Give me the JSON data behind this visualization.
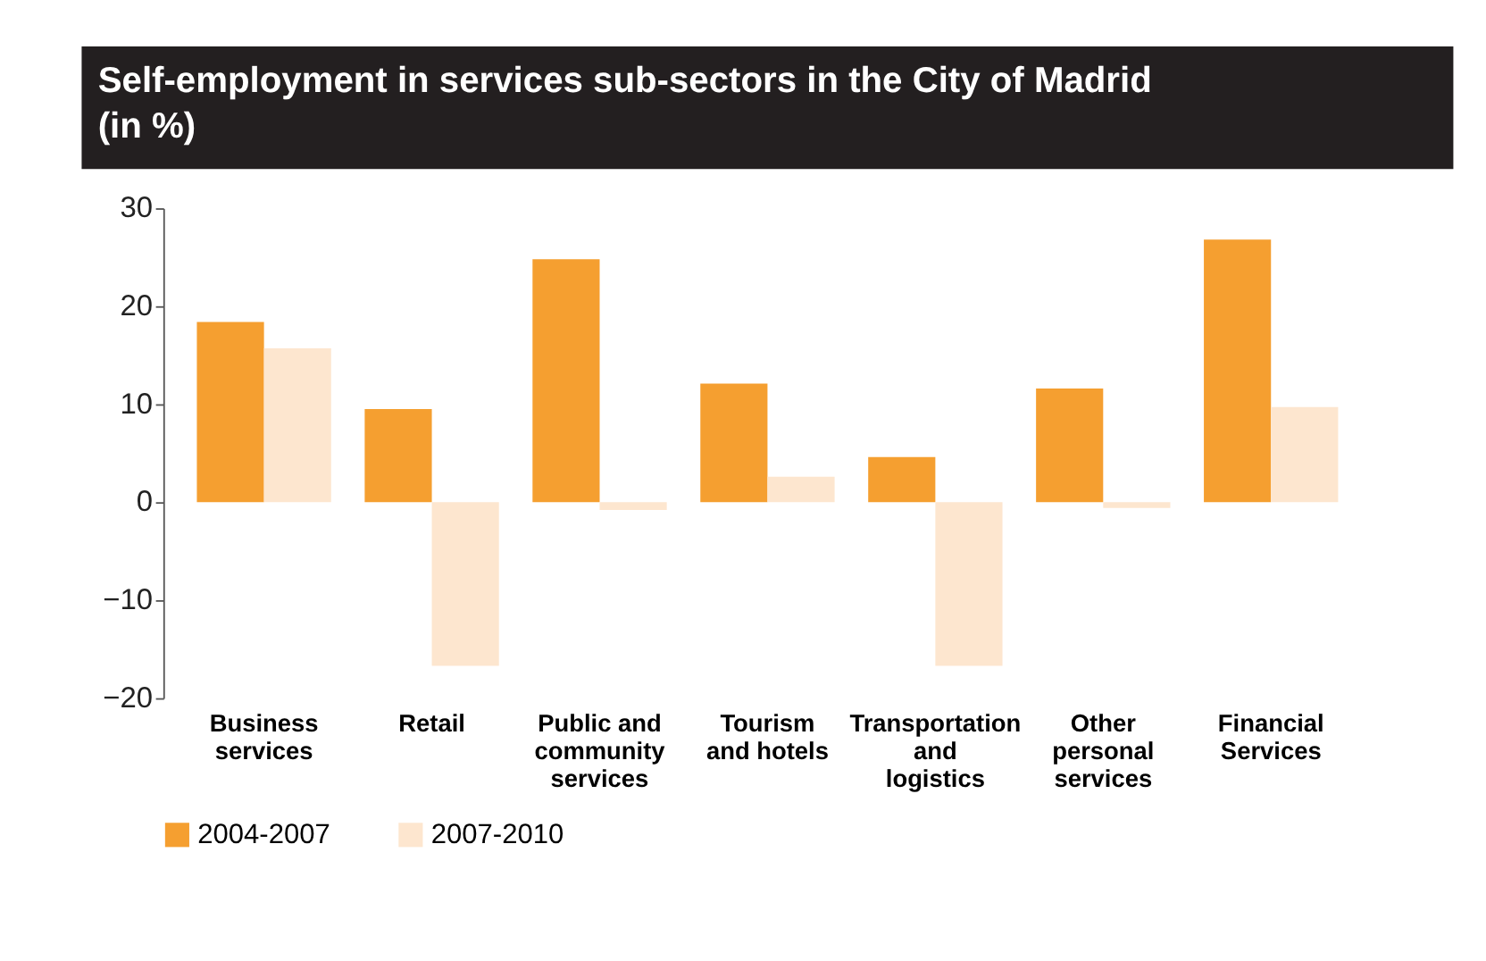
{
  "chart_data": {
    "type": "bar",
    "title": "Self-employment in services sub-sectors in the City of Madrid (in %)",
    "categories": [
      "Business services",
      "Retail",
      "Public and community services",
      "Tourism and hotels",
      "Transportation and logistics",
      "Other personal services",
      "Financial Services"
    ],
    "series": [
      {
        "name": "2004-2007",
        "color": "#f59f30",
        "values": [
          18.4,
          9.5,
          24.8,
          12.1,
          4.6,
          11.6,
          26.8
        ]
      },
      {
        "name": "2007-2010",
        "color": "#fde6cf",
        "values": [
          15.7,
          -16.7,
          -0.8,
          2.6,
          -16.7,
          -0.6,
          9.7
        ]
      }
    ],
    "ylim": [
      -20,
      30
    ],
    "yticks": [
      -20,
      -10,
      0,
      10,
      20,
      30
    ],
    "grid": false,
    "legend": "bottom"
  }
}
